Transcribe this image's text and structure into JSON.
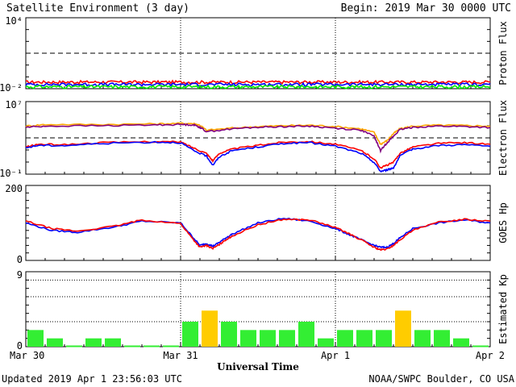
{
  "header": {
    "title": "Satellite Environment (3 day)",
    "begin": "Begin:  2019 Mar 30 0000 UTC"
  },
  "footer": {
    "updated": "Updated 2019 Apr  1 23:56:03 UTC",
    "credit": "NOAA/SWPC Boulder, CO USA"
  },
  "colors": {
    "red": "#ff0000",
    "blue": "#0000ff",
    "green": "#00ee00",
    "orange": "#ffa500",
    "purple": "#800080",
    "kp_green": "#33ee33",
    "kp_yellow": "#ffcc00"
  },
  "chart_data": [
    {
      "type": "line",
      "ylabel": "Proton Flux",
      "yscale": "log",
      "ylim": [
        0.01,
        10000
      ],
      "yticks": [
        "10⁴",
        "10⁻²"
      ],
      "threshold": 10,
      "series": [
        {
          "color": "red",
          "level": 0.035
        },
        {
          "color": "blue",
          "level": 0.022
        },
        {
          "color": "green",
          "level": 0.014
        }
      ]
    },
    {
      "type": "line",
      "ylabel": "Electron Flux",
      "yscale": "log",
      "ylim": [
        0.1,
        10000000
      ],
      "yticks": [
        "10⁷",
        "10⁻¹"
      ],
      "threshold": 1000,
      "series": [
        {
          "color": "orange",
          "x": [
            0,
            3,
            12,
            20,
            24,
            26,
            27,
            28,
            32,
            36,
            40,
            44,
            48,
            52,
            54,
            55,
            56,
            57,
            58,
            60,
            64,
            68,
            72
          ],
          "y": [
            20000,
            30000,
            30000,
            35000,
            40000,
            38000,
            25000,
            7000,
            12000,
            18000,
            22000,
            25000,
            18000,
            10000,
            4000,
            200,
            500,
            3000,
            10000,
            20000,
            25000,
            23000,
            20000
          ]
        },
        {
          "color": "purple",
          "x": [
            0,
            3,
            12,
            20,
            24,
            26,
            27,
            28,
            32,
            36,
            40,
            44,
            48,
            52,
            54,
            55,
            56,
            57,
            58,
            60,
            64,
            68,
            72
          ],
          "y": [
            15000,
            20000,
            22000,
            27000,
            30000,
            28000,
            15000,
            5000,
            10000,
            15000,
            18000,
            20000,
            12000,
            7000,
            1500,
            40,
            300,
            1500,
            8000,
            15000,
            20000,
            18000,
            14000
          ]
        },
        {
          "color": "red",
          "x": [
            0,
            2,
            6,
            12,
            20,
            24,
            26,
            28,
            29,
            30,
            32,
            36,
            40,
            44,
            48,
            52,
            54,
            55,
            56,
            57,
            58,
            60,
            64,
            68,
            72
          ],
          "y": [
            100,
            200,
            180,
            300,
            400,
            350,
            80,
            20,
            3,
            20,
            60,
            150,
            350,
            400,
            200,
            40,
            5,
            0.5,
            1,
            2,
            20,
            100,
            250,
            300,
            200
          ]
        },
        {
          "color": "blue",
          "x": [
            0,
            2,
            6,
            12,
            20,
            24,
            26,
            28,
            29,
            30,
            32,
            36,
            40,
            44,
            48,
            52,
            54,
            55,
            56,
            57,
            58,
            60,
            64,
            68,
            72
          ],
          "y": [
            80,
            150,
            140,
            250,
            350,
            300,
            40,
            10,
            1,
            8,
            40,
            100,
            250,
            300,
            120,
            20,
            2,
            0.2,
            0.3,
            0.5,
            10,
            60,
            150,
            180,
            120
          ]
        }
      ]
    },
    {
      "type": "line",
      "ylabel": "GOES Hp",
      "ylim": [
        0,
        200
      ],
      "yticks": [
        "200",
        "0"
      ],
      "series": [
        {
          "color": "blue",
          "x": [
            0,
            4,
            8,
            14,
            18,
            24,
            26,
            27,
            28,
            29,
            30,
            31,
            32,
            36,
            40,
            44,
            48,
            50,
            52,
            54,
            55,
            56,
            57,
            58,
            60,
            64,
            68,
            72
          ],
          "y": [
            100,
            80,
            75,
            90,
            105,
            100,
            60,
            40,
            45,
            38,
            48,
            60,
            70,
            100,
            112,
            105,
            85,
            70,
            55,
            40,
            35,
            35,
            45,
            60,
            85,
            100,
            108,
            100
          ]
        },
        {
          "color": "red",
          "x": [
            0,
            4,
            8,
            14,
            18,
            24,
            26,
            27,
            28,
            29,
            30,
            31,
            32,
            36,
            40,
            44,
            48,
            50,
            52,
            54,
            55,
            56,
            57,
            58,
            60,
            64,
            68,
            72
          ],
          "y": [
            105,
            85,
            78,
            92,
            108,
            98,
            55,
            35,
            40,
            32,
            42,
            55,
            65,
            95,
            110,
            108,
            88,
            72,
            55,
            35,
            28,
            30,
            40,
            55,
            80,
            102,
            110,
            105
          ]
        }
      ]
    },
    {
      "type": "bar",
      "ylabel": "Estimated Kp",
      "ylim": [
        0,
        9
      ],
      "yticks": [
        "9",
        "0"
      ],
      "values": [
        2.0,
        1.0,
        0.0,
        1.0,
        1.0,
        0.0,
        0.0,
        0.0,
        3.0,
        4.33,
        3.0,
        2.0,
        2.0,
        2.0,
        3.0,
        1.0,
        2.0,
        2.0,
        2.0,
        4.33,
        2.0,
        2.0,
        1.0,
        0.0
      ],
      "storm_threshold": 4,
      "xlabel": "Universal Time",
      "xticks": [
        "Mar 30",
        "Mar 31",
        "Apr 1",
        "Apr 2"
      ]
    }
  ]
}
